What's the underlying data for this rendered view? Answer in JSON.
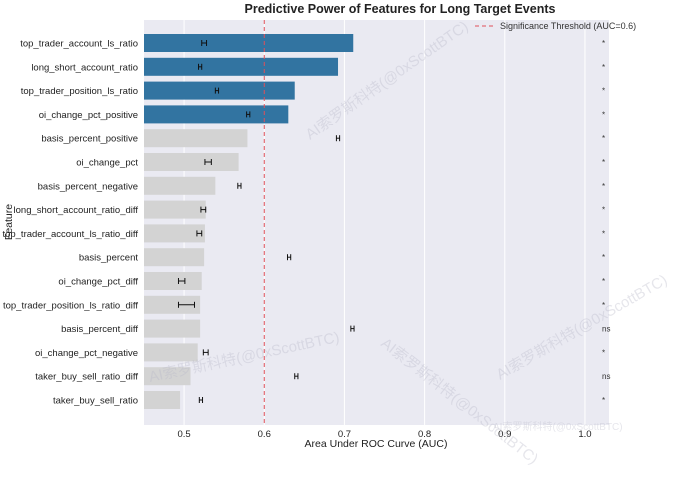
{
  "chart_data": {
    "type": "bar",
    "orientation": "horizontal",
    "title": "Predictive Power of Features for Long Target Events",
    "xlabel": "Area Under ROC Curve (AUC)",
    "ylabel": "Feature",
    "xlim": [
      0.45,
      1.03
    ],
    "xticks": [
      "0.5",
      "0.6",
      "0.7",
      "0.8",
      "0.9",
      "1.0"
    ],
    "grid": true,
    "legend_position": "top-right",
    "threshold": {
      "value": 0.6,
      "label": "Significance Threshold (AUC=0.6)",
      "color": "#e0505a"
    },
    "colors": {
      "significant": "#3274a1",
      "not_significant": "#d3d3d3",
      "background": "#eaeaf2"
    },
    "features": [
      {
        "name": "top_trader_account_ls_ratio",
        "value": 0.711,
        "ci_center": 0.525,
        "ci_low": 0.522,
        "ci_high": 0.528,
        "sig": "*",
        "above_threshold": true
      },
      {
        "name": "long_short_account_ratio",
        "value": 0.692,
        "ci_center": 0.52,
        "ci_low": 0.518,
        "ci_high": 0.522,
        "sig": "*",
        "above_threshold": true
      },
      {
        "name": "top_trader_position_ls_ratio",
        "value": 0.638,
        "ci_center": 0.541,
        "ci_low": 0.539,
        "ci_high": 0.543,
        "sig": "*",
        "above_threshold": true
      },
      {
        "name": "oi_change_pct_positive",
        "value": 0.63,
        "ci_center": 0.58,
        "ci_low": 0.578,
        "ci_high": 0.582,
        "sig": "*",
        "above_threshold": true
      },
      {
        "name": "basis_percent_positive",
        "value": 0.579,
        "ci_center": 0.692,
        "ci_low": 0.69,
        "ci_high": 0.694,
        "sig": "*",
        "above_threshold": false
      },
      {
        "name": "oi_change_pct",
        "value": 0.568,
        "ci_center": 0.53,
        "ci_low": 0.526,
        "ci_high": 0.534,
        "sig": "*",
        "above_threshold": false
      },
      {
        "name": "basis_percent_negative",
        "value": 0.539,
        "ci_center": 0.569,
        "ci_low": 0.567,
        "ci_high": 0.571,
        "sig": "*",
        "above_threshold": false
      },
      {
        "name": "long_short_account_ratio_diff",
        "value": 0.527,
        "ci_center": 0.524,
        "ci_low": 0.521,
        "ci_high": 0.527,
        "sig": "*",
        "above_threshold": false
      },
      {
        "name": "top_trader_account_ls_ratio_diff",
        "value": 0.526,
        "ci_center": 0.519,
        "ci_low": 0.516,
        "ci_high": 0.522,
        "sig": "*",
        "above_threshold": false
      },
      {
        "name": "basis_percent",
        "value": 0.525,
        "ci_center": 0.631,
        "ci_low": 0.629,
        "ci_high": 0.633,
        "sig": "*",
        "above_threshold": false
      },
      {
        "name": "oi_change_pct_diff",
        "value": 0.522,
        "ci_center": 0.497,
        "ci_low": 0.493,
        "ci_high": 0.501,
        "sig": "*",
        "above_threshold": false
      },
      {
        "name": "top_trader_position_ls_ratio_diff",
        "value": 0.52,
        "ci_center": 0.503,
        "ci_low": 0.493,
        "ci_high": 0.513,
        "sig": "*",
        "above_threshold": false
      },
      {
        "name": "basis_percent_diff",
        "value": 0.52,
        "ci_center": 0.71,
        "ci_low": 0.708,
        "ci_high": 0.712,
        "sig": "ns",
        "above_threshold": false
      },
      {
        "name": "oi_change_pct_negative",
        "value": 0.517,
        "ci_center": 0.527,
        "ci_low": 0.524,
        "ci_high": 0.53,
        "sig": "*",
        "above_threshold": false
      },
      {
        "name": "taker_buy_sell_ratio_diff",
        "value": 0.508,
        "ci_center": 0.64,
        "ci_low": 0.638,
        "ci_high": 0.642,
        "sig": "ns",
        "above_threshold": false
      },
      {
        "name": "taker_buy_sell_ratio",
        "value": 0.495,
        "ci_center": 0.521,
        "ci_low": 0.519,
        "ci_high": 0.523,
        "sig": "*",
        "above_threshold": false
      }
    ]
  },
  "watermark": "AI索罗斯科特(@0xScottBTC)"
}
